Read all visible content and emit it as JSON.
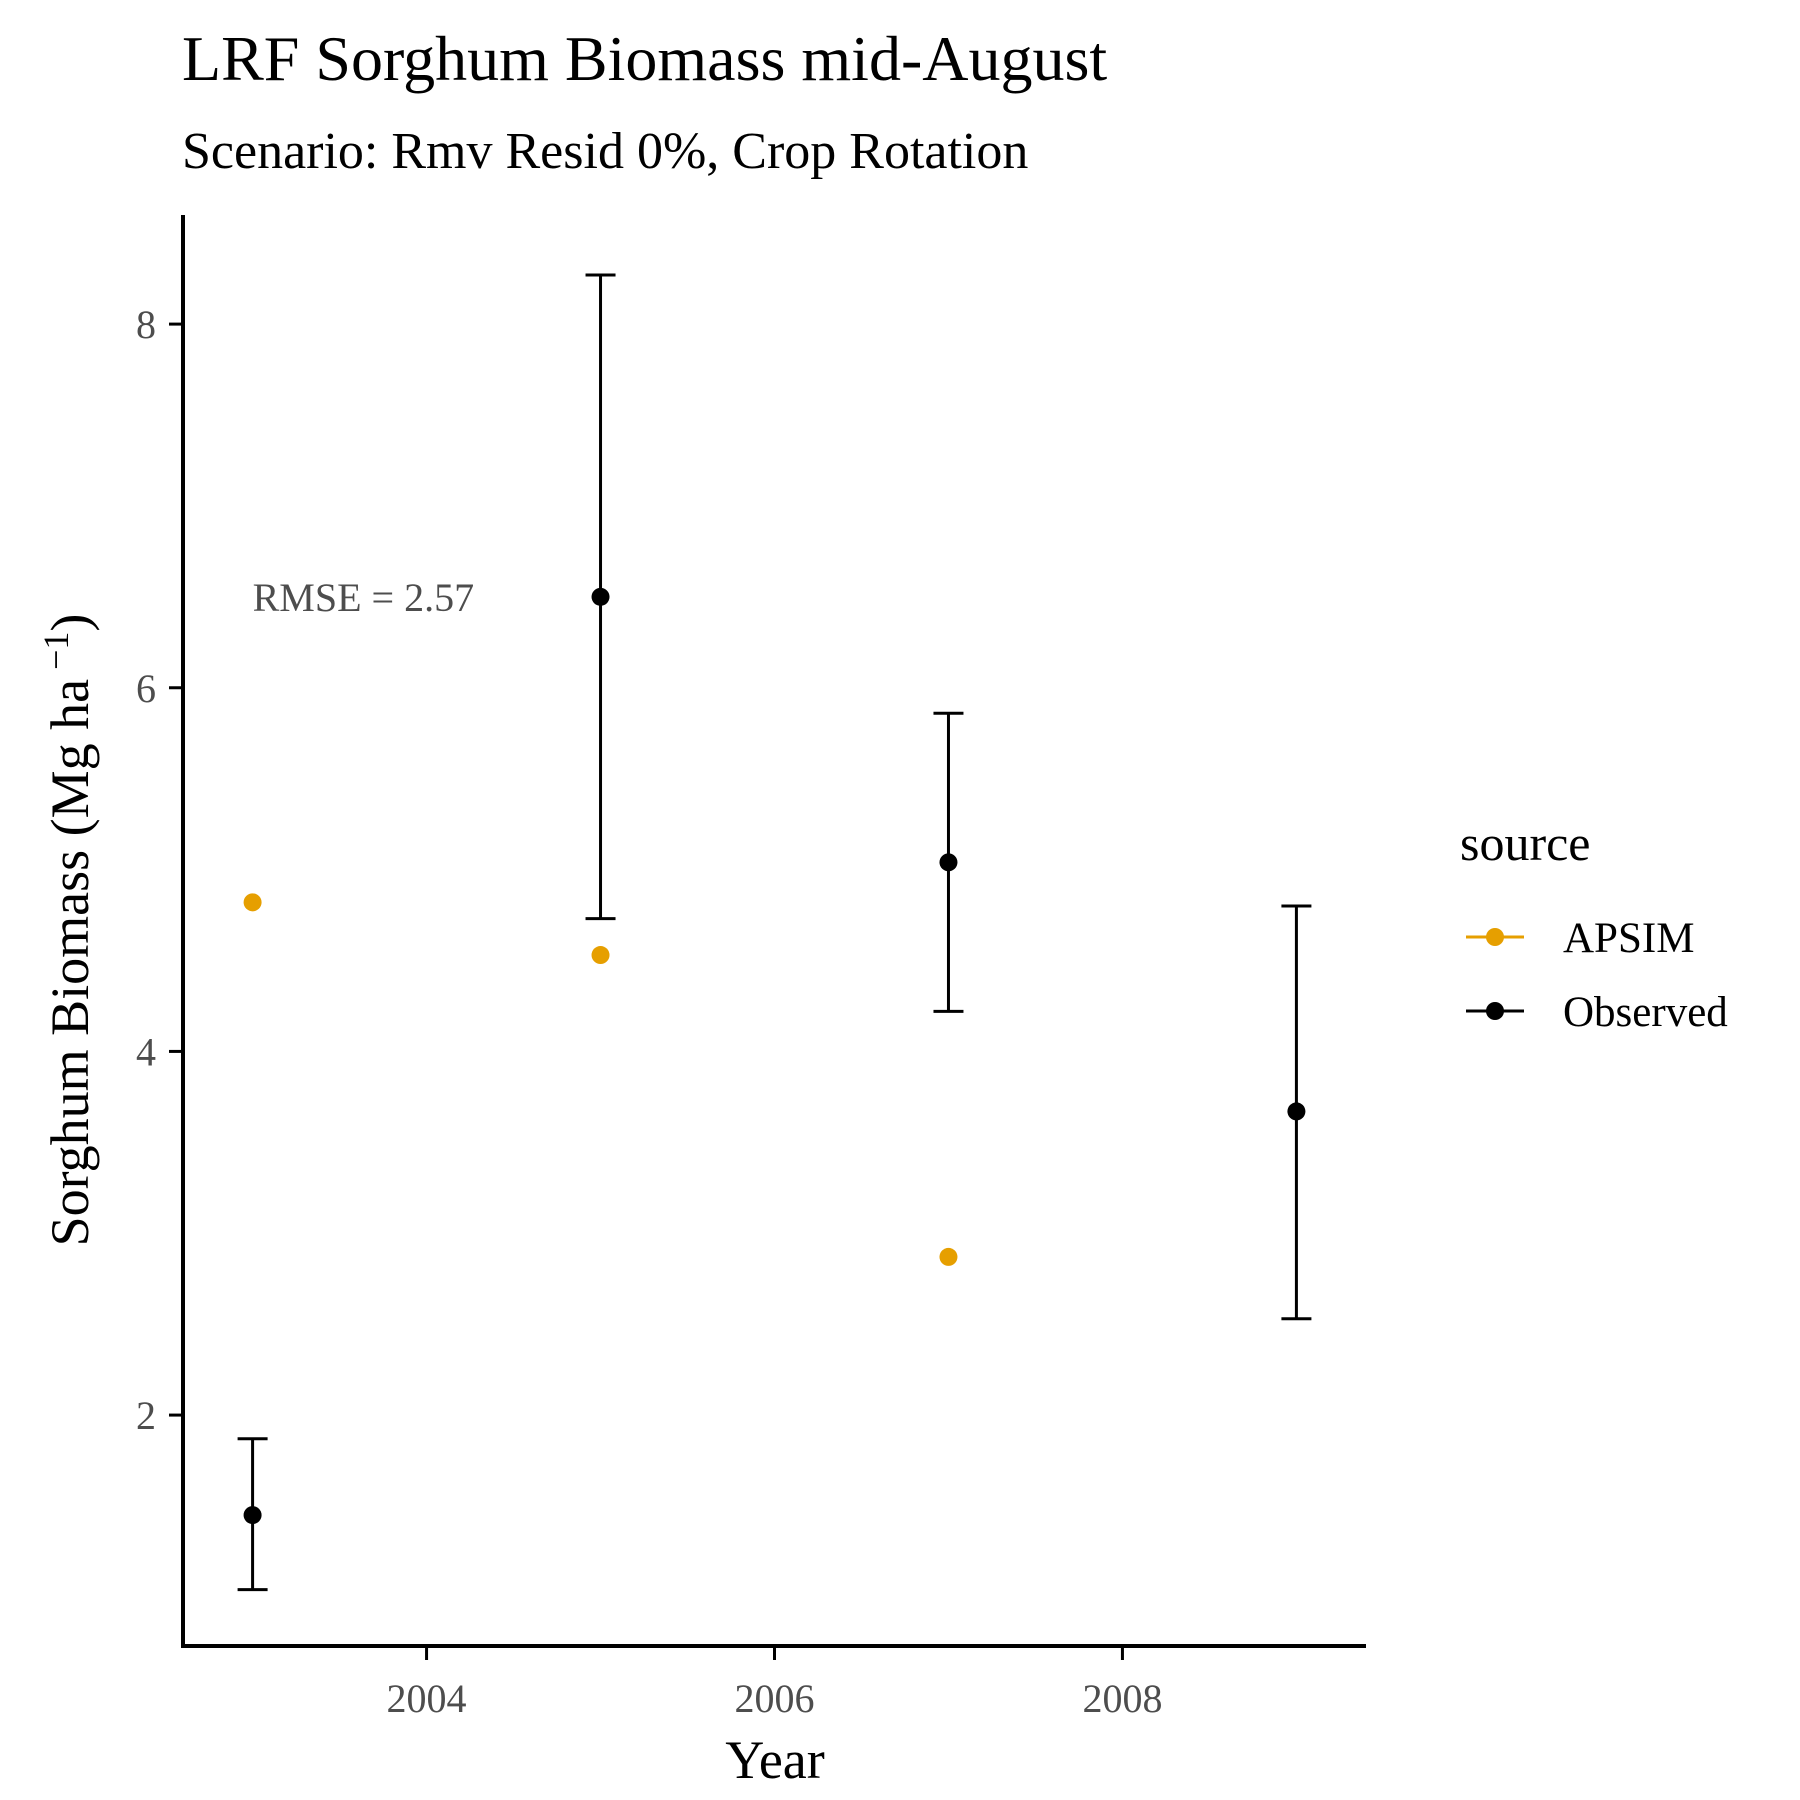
{
  "chart_data": {
    "type": "scatter",
    "title": "LRF Sorghum Biomass mid-August",
    "subtitle": "Scenario: Rmv Resid 0%, Crop Rotation",
    "xlabel": "Year",
    "ylabel_main": "Sorghum Biomass (Mg ha",
    "ylabel_sup": " −1",
    "ylabel_close": ")",
    "xlim": [
      2002.6,
      2009.4
    ],
    "ylim": [
      0.73,
      8.6
    ],
    "x_ticks": [
      2004,
      2006,
      2008
    ],
    "x_tick_labels": [
      "2004",
      "2006",
      "2008"
    ],
    "y_ticks": [
      2,
      4,
      6,
      8
    ],
    "y_tick_labels": [
      "2",
      "4",
      "6",
      "8"
    ],
    "grid": false,
    "legend": {
      "title": "source",
      "placement": "right",
      "entries": [
        "APSIM",
        "Observed"
      ]
    },
    "annotation": {
      "text": "RMSE = 2.57",
      "x": 2003.0,
      "y": 6.5
    },
    "series": [
      {
        "name": "APSIM",
        "color": "#E69F00",
        "points": [
          {
            "x": 2003,
            "y": 4.82
          },
          {
            "x": 2005,
            "y": 4.53
          },
          {
            "x": 2007,
            "y": 2.87
          }
        ]
      },
      {
        "name": "Observed",
        "color": "#000000",
        "points": [
          {
            "x": 2003,
            "y": 1.45,
            "ymin": 1.04,
            "ymax": 1.87
          },
          {
            "x": 2005,
            "y": 6.5,
            "ymin": 4.73,
            "ymax": 8.27
          },
          {
            "x": 2007,
            "y": 5.04,
            "ymin": 4.22,
            "ymax": 5.86
          },
          {
            "x": 2009,
            "y": 3.67,
            "ymin": 2.53,
            "ymax": 4.8
          }
        ]
      }
    ]
  }
}
